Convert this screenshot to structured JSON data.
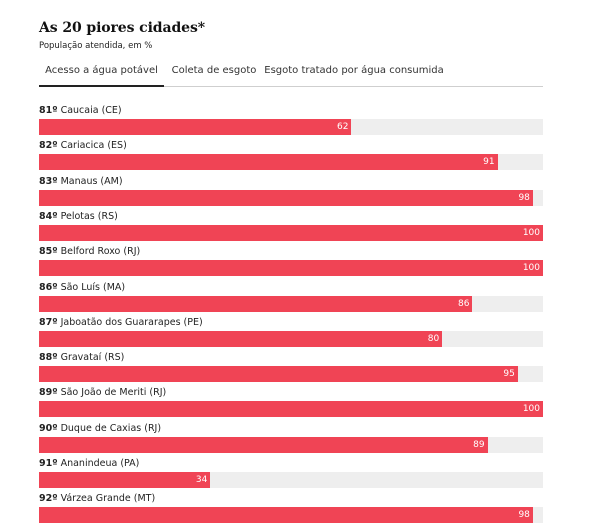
{
  "header": {
    "title": "As 20 piores cidades*",
    "subtitle": "População atendida, em %"
  },
  "tabs": [
    {
      "label": "Acesso a água potável",
      "active": true
    },
    {
      "label": "Coleta de esgoto",
      "active": false
    },
    {
      "label": "Esgoto tratado por água consumida",
      "active": false
    }
  ],
  "colors": {
    "bar": "#f04455",
    "track": "#eeeeee",
    "value_text": "#ffffff"
  },
  "chart_data": {
    "type": "bar",
    "orientation": "horizontal",
    "xlim": [
      0,
      100
    ],
    "ranks": [
      "81º",
      "82º",
      "83º",
      "84º",
      "85º",
      "86º",
      "87º",
      "88º",
      "89º",
      "90º",
      "91º",
      "92º"
    ],
    "categories": [
      "Caucaia (CE)",
      "Cariacica (ES)",
      "Manaus (AM)",
      "Pelotas (RS)",
      "Belford Roxo (RJ)",
      "São Luís (MA)",
      "Jaboatão dos Guararapes (PE)",
      "Gravataí (RS)",
      "São João de Meriti (RJ)",
      "Duque de Caxias (RJ)",
      "Ananindeua (PA)",
      "Várzea Grande (MT)"
    ],
    "values": [
      62,
      91,
      98,
      100,
      100,
      86,
      80,
      95,
      100,
      89,
      34,
      98
    ],
    "value_labels": [
      "62",
      "91",
      "98",
      "100",
      "100",
      "86",
      "80",
      "95",
      "100",
      "89",
      "34",
      "98"
    ]
  }
}
